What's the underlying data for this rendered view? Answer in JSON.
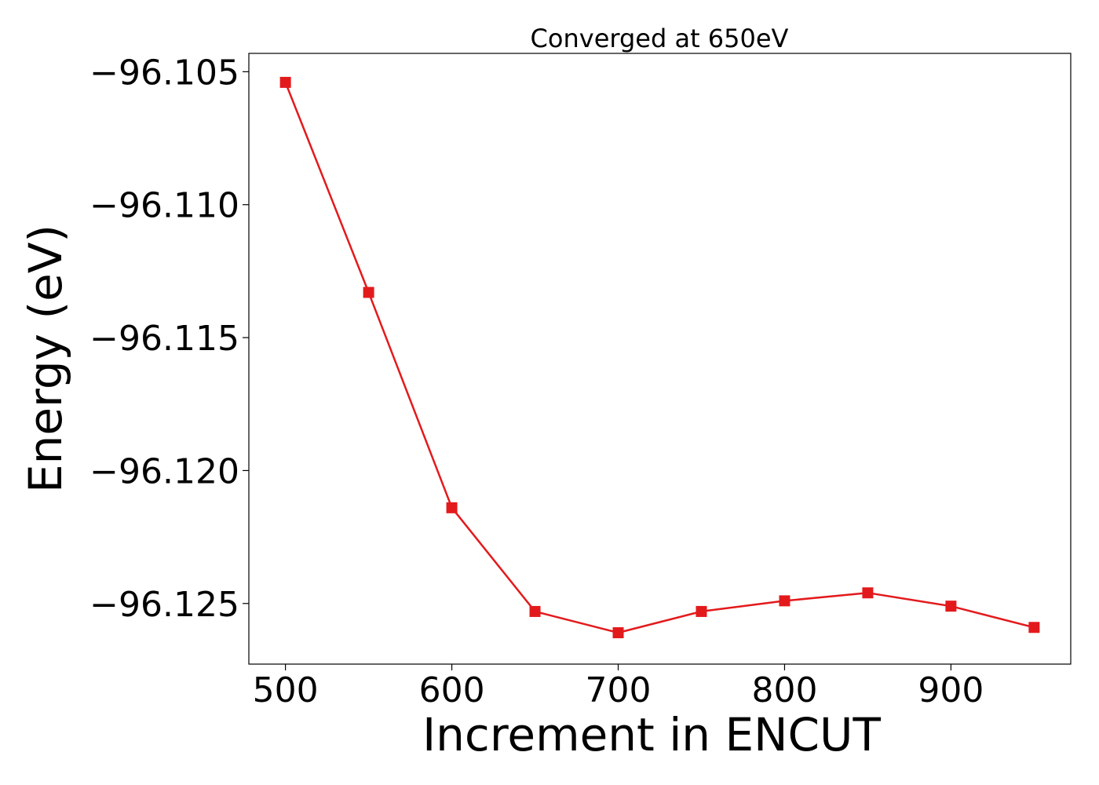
{
  "chart_data": {
    "type": "line",
    "title": "Converged at 650eV",
    "xlabel": "Increment in ENCUT",
    "ylabel": "Energy (eV)",
    "x": [
      500,
      550,
      600,
      650,
      700,
      750,
      800,
      850,
      900,
      950
    ],
    "series": [
      {
        "values": [
          -96.1054,
          -96.1133,
          -96.1214,
          -96.1253,
          -96.1261,
          -96.1253,
          -96.1249,
          -96.1246,
          -96.1251,
          -96.1259
        ],
        "color": "#e31a1c",
        "marker": "square"
      }
    ],
    "xlim": [
      478,
      972
    ],
    "ylim": [
      -96.12728,
      -96.10431
    ],
    "xticks": [
      500,
      600,
      700,
      800,
      900
    ],
    "xtick_labels": [
      "500",
      "600",
      "700",
      "800",
      "900"
    ],
    "yticks": [
      -96.105,
      -96.11,
      -96.115,
      -96.12,
      -96.125
    ],
    "ytick_labels": [
      "−96.105",
      "−96.110",
      "−96.115",
      "−96.120",
      "−96.125"
    ],
    "grid": false,
    "legend": "none"
  }
}
